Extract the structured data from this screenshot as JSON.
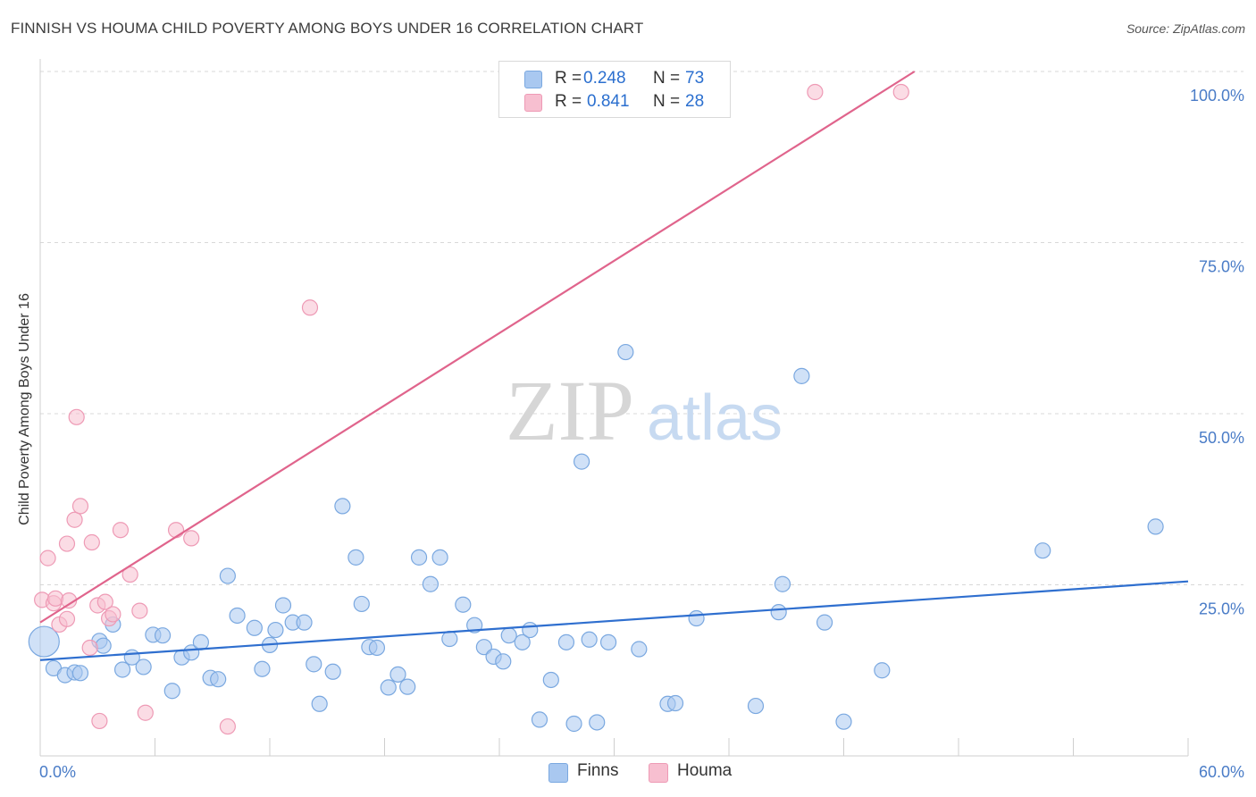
{
  "title": "FINNISH VS HOUMA CHILD POVERTY AMONG BOYS UNDER 16 CORRELATION CHART",
  "source": "Source: ZipAtlas.com",
  "watermark": {
    "zip": "ZIP",
    "atlas": "atlas"
  },
  "legend": {
    "finns": {
      "r_label": "R = ",
      "r_value": "0.248",
      "n_label": "N = ",
      "n_value": "73"
    },
    "houma": {
      "r_label": "R = ",
      "r_value": "0.841",
      "n_label": "N = ",
      "n_value": "28"
    }
  },
  "bottom_legend": {
    "finns": "Finns",
    "houma": "Houma"
  },
  "colors": {
    "finns_fill": "#a9c8f0",
    "finns_stroke": "#7aa8e0",
    "finns_line": "#2f6fcf",
    "houma_fill": "#f7bfd0",
    "houma_stroke": "#ee9ab5",
    "houma_line": "#e0648c",
    "grid": "#d8d8d8",
    "tick_text": "#4a7cc7"
  },
  "chart_data": {
    "type": "scatter",
    "title": "FINNISH VS HOUMA CHILD POVERTY AMONG BOYS UNDER 16 CORRELATION CHART",
    "xlabel": "",
    "ylabel": "Child Poverty Among Boys Under 16",
    "xlim": [
      0,
      60
    ],
    "ylim": [
      0,
      100
    ],
    "x_tick_labels": [
      "0.0%",
      "60.0%"
    ],
    "y_tick_labels": [
      "25.0%",
      "50.0%",
      "75.0%",
      "100.0%"
    ],
    "y_ticks": [
      25,
      50,
      75,
      100
    ],
    "grid": true,
    "series": [
      {
        "name": "Finns",
        "r": 0.248,
        "n": 73,
        "trend": {
          "x": [
            0,
            60
          ],
          "y": [
            14.0,
            25.5
          ]
        },
        "points": [
          [
            0.2,
            16.7
          ],
          [
            0.7,
            12.8
          ],
          [
            1.3,
            11.8
          ],
          [
            1.8,
            12.2
          ],
          [
            2.1,
            12.1
          ],
          [
            3.1,
            16.8
          ],
          [
            3.3,
            16.1
          ],
          [
            3.8,
            19.2
          ],
          [
            4.3,
            12.6
          ],
          [
            4.8,
            14.4
          ],
          [
            5.4,
            13.0
          ],
          [
            5.9,
            17.7
          ],
          [
            6.4,
            17.6
          ],
          [
            6.9,
            9.5
          ],
          [
            7.4,
            14.4
          ],
          [
            7.9,
            15.1
          ],
          [
            8.4,
            16.6
          ],
          [
            8.9,
            11.4
          ],
          [
            9.3,
            11.2
          ],
          [
            9.8,
            26.3
          ],
          [
            10.3,
            20.5
          ],
          [
            11.2,
            18.7
          ],
          [
            11.6,
            12.7
          ],
          [
            12.0,
            16.2
          ],
          [
            12.3,
            18.4
          ],
          [
            12.7,
            22.0
          ],
          [
            13.2,
            19.5
          ],
          [
            13.8,
            19.5
          ],
          [
            14.3,
            13.4
          ],
          [
            14.6,
            7.6
          ],
          [
            15.3,
            12.3
          ],
          [
            15.8,
            36.5
          ],
          [
            16.5,
            29.0
          ],
          [
            16.8,
            22.2
          ],
          [
            17.2,
            15.9
          ],
          [
            17.6,
            15.8
          ],
          [
            18.2,
            10.0
          ],
          [
            18.7,
            11.9
          ],
          [
            19.2,
            10.1
          ],
          [
            19.8,
            29.0
          ],
          [
            20.4,
            25.1
          ],
          [
            20.9,
            29.0
          ],
          [
            21.4,
            17.1
          ],
          [
            22.1,
            22.1
          ],
          [
            22.7,
            19.1
          ],
          [
            23.2,
            15.9
          ],
          [
            23.7,
            14.5
          ],
          [
            24.2,
            13.8
          ],
          [
            24.5,
            17.6
          ],
          [
            25.2,
            16.6
          ],
          [
            25.6,
            18.4
          ],
          [
            26.1,
            5.3
          ],
          [
            26.7,
            11.1
          ],
          [
            27.5,
            16.6
          ],
          [
            27.9,
            4.7
          ],
          [
            28.3,
            43.0
          ],
          [
            28.7,
            17.0
          ],
          [
            29.1,
            4.9
          ],
          [
            29.7,
            16.6
          ],
          [
            30.6,
            59.0
          ],
          [
            31.3,
            15.6
          ],
          [
            32.8,
            7.6
          ],
          [
            33.2,
            7.7
          ],
          [
            34.3,
            20.1
          ],
          [
            37.4,
            7.3
          ],
          [
            38.6,
            21.0
          ],
          [
            38.8,
            25.1
          ],
          [
            39.8,
            55.5
          ],
          [
            41.0,
            19.5
          ],
          [
            42.0,
            5.0
          ],
          [
            44.0,
            12.5
          ],
          [
            52.4,
            30.0
          ],
          [
            58.3,
            33.5
          ]
        ]
      },
      {
        "name": "Houma",
        "r": 0.841,
        "n": 28,
        "trend": {
          "x": [
            0,
            45.7
          ],
          "y": [
            19.5,
            100
          ]
        },
        "points": [
          [
            0.1,
            22.8
          ],
          [
            0.4,
            28.9
          ],
          [
            0.7,
            22.3
          ],
          [
            0.8,
            23.0
          ],
          [
            1.0,
            19.2
          ],
          [
            1.4,
            31.0
          ],
          [
            1.4,
            20.0
          ],
          [
            1.5,
            22.7
          ],
          [
            1.8,
            34.5
          ],
          [
            1.9,
            49.5
          ],
          [
            2.1,
            36.5
          ],
          [
            2.7,
            31.2
          ],
          [
            2.6,
            15.8
          ],
          [
            3.0,
            22.0
          ],
          [
            3.1,
            5.1
          ],
          [
            3.4,
            22.5
          ],
          [
            3.6,
            20.1
          ],
          [
            3.8,
            20.7
          ],
          [
            4.2,
            33.0
          ],
          [
            4.7,
            26.5
          ],
          [
            5.2,
            21.2
          ],
          [
            5.5,
            6.3
          ],
          [
            7.1,
            33.0
          ],
          [
            7.9,
            31.8
          ],
          [
            9.8,
            4.3
          ],
          [
            14.1,
            65.5
          ],
          [
            40.5,
            97.0
          ],
          [
            45.0,
            97.0
          ]
        ]
      }
    ]
  }
}
